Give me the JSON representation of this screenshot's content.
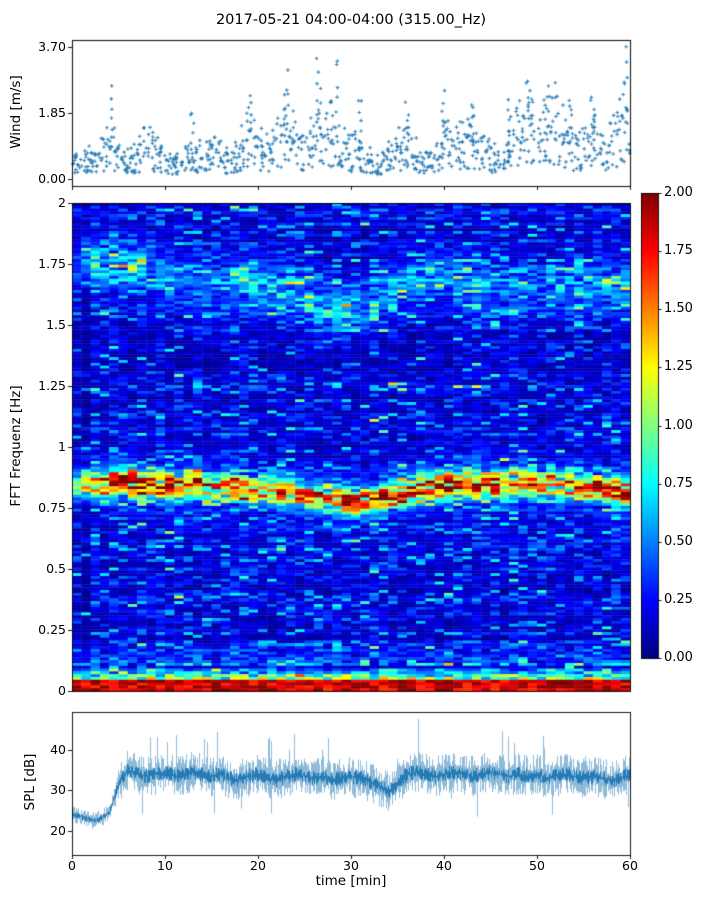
{
  "title": "2017-05-21 04:00-04:00 (315.00_Hz)",
  "colors": {
    "series": "#1f77b4",
    "frame": "#000000",
    "background": "#ffffff"
  },
  "axes": {
    "x": {
      "label": "time [min]",
      "ticks": [
        "0",
        "10",
        "20",
        "30",
        "40",
        "50",
        "60"
      ],
      "tick_values": [
        0,
        10,
        20,
        30,
        40,
        50,
        60
      ],
      "lim": [
        0,
        60
      ]
    },
    "wind": {
      "ylabel": "Wind [m/s]",
      "yticks": [
        "0.00",
        "1.85",
        "3.70"
      ],
      "ytick_values": [
        0,
        1.85,
        3.7
      ],
      "ylim": [
        -0.19,
        3.89
      ]
    },
    "spec": {
      "ylabel": "FFT Frequenz [Hz]",
      "yticks": [
        "0",
        "0.25",
        "0.5",
        "0.75",
        "1",
        "1.25",
        "1.5",
        "1.75",
        "2"
      ],
      "ytick_values": [
        0,
        0.25,
        0.5,
        0.75,
        1,
        1.25,
        1.5,
        1.75,
        2
      ],
      "ylim": [
        0,
        2
      ]
    },
    "colorbar": {
      "ticks": [
        "0.00",
        "0.25",
        "0.50",
        "0.75",
        "1.00",
        "1.25",
        "1.50",
        "1.75",
        "2.00"
      ],
      "tick_values": [
        0,
        0.25,
        0.5,
        0.75,
        1,
        1.25,
        1.5,
        1.75,
        2
      ],
      "lim": [
        0,
        2
      ],
      "colormap": "jet"
    },
    "spl": {
      "ylabel": "SPL [dB]",
      "yticks": [
        "20",
        "30",
        "40"
      ],
      "ytick_values": [
        20,
        30,
        40
      ],
      "ylim": [
        14,
        49.4
      ]
    }
  },
  "chart_data": [
    {
      "type": "scatter",
      "name": "wind-speed",
      "marker": "+",
      "color": "#1f77b4",
      "x_unit": "min",
      "x_range": [
        0,
        60
      ],
      "y_range_shown": [
        0,
        3.7
      ],
      "mean_per_min": [
        0.5,
        0.6,
        0.5,
        0.6,
        1.0,
        0.7,
        0.5,
        0.6,
        0.9,
        0.7,
        0.5,
        0.4,
        0.5,
        0.6,
        0.7,
        0.7,
        0.6,
        0.5,
        0.8,
        1.1,
        0.9,
        0.7,
        1.0,
        1.4,
        1.0,
        0.8,
        1.3,
        1.6,
        1.2,
        0.9,
        0.7,
        0.8,
        0.5,
        0.4,
        0.6,
        0.8,
        0.9,
        0.7,
        0.5,
        0.7,
        1.0,
        1.2,
        0.9,
        1.1,
        0.8,
        0.6,
        0.5,
        0.8,
        1.2,
        1.5,
        1.1,
        1.3,
        1.6,
        1.2,
        0.8,
        0.9,
        1.1,
        0.8,
        1.0,
        1.4,
        1.8
      ],
      "peaks": [
        [
          4.3,
          2.45
        ],
        [
          13,
          1.9
        ],
        [
          19,
          2.5
        ],
        [
          23,
          2.9
        ],
        [
          26.5,
          3.4
        ],
        [
          28.5,
          3.65
        ],
        [
          31,
          2.3
        ],
        [
          36,
          2.1
        ],
        [
          40,
          2.3
        ],
        [
          43,
          2.2
        ],
        [
          47,
          2.3
        ],
        [
          49,
          2.8
        ],
        [
          51,
          2.6
        ],
        [
          53.5,
          2.4
        ],
        [
          56,
          2.3
        ],
        [
          59.5,
          3.7
        ]
      ]
    },
    {
      "type": "heatmap",
      "name": "fft-spectrogram",
      "colormap": "jet",
      "clim": [
        0,
        2
      ],
      "xlim": [
        0,
        60
      ],
      "ylim": [
        0,
        2
      ],
      "background_level": 0.18,
      "dark_column_min": 1,
      "dark_column_factor": 0.45,
      "main_band": {
        "width_hz": 0.035,
        "center_per_min": [
          0.84,
          0.85,
          0.85,
          0.84,
          0.85,
          0.86,
          0.85,
          0.84,
          0.85,
          0.84,
          0.84,
          0.83,
          0.84,
          0.85,
          0.84,
          0.83,
          0.83,
          0.84,
          0.83,
          0.82,
          0.83,
          0.82,
          0.81,
          0.82,
          0.81,
          0.8,
          0.8,
          0.79,
          0.78,
          0.78,
          0.77,
          0.78,
          0.78,
          0.79,
          0.8,
          0.81,
          0.82,
          0.83,
          0.83,
          0.84,
          0.84,
          0.85,
          0.85,
          0.84,
          0.85,
          0.85,
          0.84,
          0.85,
          0.86,
          0.85,
          0.84,
          0.85,
          0.84,
          0.85,
          0.84,
          0.83,
          0.84,
          0.83,
          0.82,
          0.81,
          0.8
        ],
        "amp_per_min": [
          1.0,
          1.1,
          1.3,
          1.6,
          1.8,
          2.0,
          1.9,
          1.7,
          1.5,
          1.4,
          1.5,
          1.4,
          1.3,
          1.5,
          1.4,
          1.3,
          1.2,
          1.4,
          1.3,
          1.2,
          1.3,
          1.2,
          1.4,
          1.3,
          1.2,
          1.1,
          1.3,
          1.4,
          1.3,
          1.4,
          1.5,
          1.4,
          1.3,
          1.5,
          1.4,
          1.6,
          1.7,
          1.8,
          1.6,
          1.7,
          1.8,
          1.6,
          1.5,
          1.4,
          1.3,
          1.5,
          1.4,
          1.3,
          1.5,
          1.4,
          1.3,
          1.4,
          1.2,
          1.3,
          1.4,
          1.3,
          1.5,
          1.6,
          1.7,
          1.6,
          1.5
        ]
      },
      "upper_band": {
        "width_hz": 0.07,
        "center_per_min": [
          1.76,
          1.77,
          1.76,
          1.75,
          1.76,
          1.75,
          1.74,
          1.73,
          1.72,
          1.7,
          1.69,
          1.68,
          1.67,
          1.66,
          1.66,
          1.65,
          1.66,
          1.67,
          1.68,
          1.67,
          1.66,
          1.65,
          1.64,
          1.63,
          1.62,
          1.6,
          1.58,
          1.57,
          1.56,
          1.55,
          1.56,
          1.58,
          1.6,
          1.62,
          1.63,
          1.65,
          1.67,
          1.68,
          1.7,
          1.7,
          1.69,
          1.68,
          1.68,
          1.67,
          1.66,
          1.65,
          1.64,
          1.63,
          1.64,
          1.65,
          1.64,
          1.63,
          1.64,
          1.65,
          1.64,
          1.65,
          1.66,
          1.65,
          1.64,
          1.65,
          1.66
        ],
        "amp_per_min": [
          0.3,
          0.45,
          0.5,
          0.55,
          0.6,
          0.65,
          0.6,
          0.55,
          0.5,
          0.45,
          0.4,
          0.3,
          0.3,
          0.35,
          0.3,
          0.3,
          0.35,
          0.4,
          0.5,
          0.55,
          0.5,
          0.45,
          0.5,
          0.45,
          0.4,
          0.45,
          0.5,
          0.45,
          0.5,
          0.55,
          0.5,
          0.45,
          0.4,
          0.45,
          0.4,
          0.35,
          0.4,
          0.45,
          0.4,
          0.35,
          0.4,
          0.45,
          0.4,
          0.35,
          0.4,
          0.3,
          0.3,
          0.35,
          0.3,
          0.35,
          0.3,
          0.3,
          0.35,
          0.4,
          0.45,
          0.5,
          0.45,
          0.4,
          0.45,
          0.5,
          0.55
        ]
      },
      "surface_band": {
        "below_hz": 0.045,
        "level": 1.8,
        "decay_to_hz": 0.2
      }
    },
    {
      "type": "line",
      "name": "spl",
      "color": "#1f77b4",
      "x_range": [
        0,
        60
      ],
      "transition_min": 4.6,
      "noise_amp_quiet_db": 1.4,
      "noise_amp_loud_db": 3.4,
      "mean_per_min": [
        24,
        23.5,
        22.5,
        23,
        24.5,
        32,
        35,
        34,
        33.5,
        34,
        34.5,
        33.5,
        34,
        34.5,
        34,
        33.5,
        34,
        33,
        32.5,
        33.5,
        34,
        33,
        32.5,
        33.5,
        34,
        33.5,
        33,
        33.5,
        32.5,
        33,
        33.5,
        33,
        32,
        31,
        29.5,
        32,
        34,
        34.5,
        34,
        33.5,
        34,
        34.5,
        34,
        33.5,
        34,
        34.5,
        34,
        33.5,
        34,
        33.5,
        34,
        33,
        33.5,
        34,
        33.5,
        33,
        33.5,
        33,
        32.5,
        33,
        34
      ]
    }
  ]
}
